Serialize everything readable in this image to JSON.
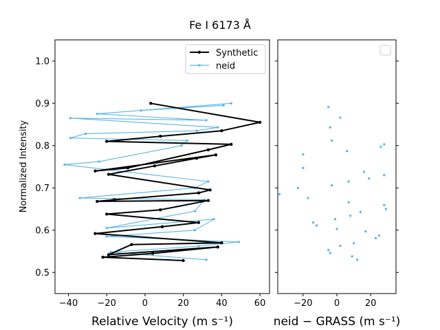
{
  "chart_data": [
    {
      "type": "line",
      "title": "Fe I 6173 Å",
      "xlabel": "Relative Velocity (m s⁻¹)",
      "ylabel": "Normalized Intensity",
      "xlim": [
        -47,
        65
      ],
      "ylim": [
        0.45,
        1.05
      ],
      "x_ticks": [
        -40,
        -20,
        0,
        20,
        40,
        60
      ],
      "y_ticks": [
        0.5,
        0.6,
        0.7,
        0.8,
        0.9,
        1.0
      ],
      "x_tick_labels": [
        "−40",
        "−20",
        "0",
        "20",
        "40",
        "60"
      ],
      "y_tick_labels": [
        "0.5",
        "0.6",
        "0.7",
        "0.8",
        "0.9",
        "1.0"
      ],
      "grid": false,
      "legend_position": "top-right",
      "series": [
        {
          "name": "Synthetic",
          "color": "#000000",
          "x": [
            20,
            -22,
            4,
            38,
            -19,
            -7,
            40,
            -26,
            9,
            28,
            -20,
            8,
            33,
            -25,
            -16,
            28,
            34,
            -19,
            5,
            27,
            37,
            -26,
            -9,
            33,
            45,
            -20,
            8,
            40,
            60,
            3
          ],
          "y": [
            0.528,
            0.536,
            0.545,
            0.56,
            0.542,
            0.566,
            0.57,
            0.592,
            0.608,
            0.618,
            0.638,
            0.648,
            0.67,
            0.668,
            0.672,
            0.688,
            0.695,
            0.732,
            0.752,
            0.77,
            0.778,
            0.74,
            0.747,
            0.79,
            0.803,
            0.81,
            0.822,
            0.835,
            0.855,
            0.9
          ]
        },
        {
          "name": "neid",
          "color": "#5ab4e5",
          "x": [
            32,
            -18,
            28,
            49,
            -20,
            26,
            36,
            -20,
            26,
            31,
            -34,
            26,
            33,
            -42,
            -24,
            19,
            22,
            -39,
            -31,
            27,
            38,
            -39,
            32,
            -25,
            45,
            -2,
            41
          ],
          "y": [
            0.53,
            0.548,
            0.562,
            0.572,
            0.585,
            0.6,
            0.626,
            0.605,
            0.645,
            0.672,
            0.676,
            0.7,
            0.715,
            0.755,
            0.762,
            0.8,
            0.812,
            0.818,
            0.828,
            0.835,
            0.843,
            0.865,
            0.86,
            0.875,
            0.9,
            0.883,
            0.895
          ]
        }
      ]
    },
    {
      "type": "scatter",
      "title": "",
      "xlabel": "neid − GRASS (m s⁻¹)",
      "ylabel": "",
      "xlim": [
        -35,
        35
      ],
      "ylim": [
        0.45,
        1.05
      ],
      "x_ticks": [
        -20,
        0,
        20
      ],
      "x_tick_labels": [
        "−20",
        "0",
        "20"
      ],
      "grid": false,
      "legend_position": "top-right",
      "series": [
        {
          "name": "",
          "color": "#5ab4e5",
          "x": [
            -5,
            2,
            -4,
            -3,
            6,
            26,
            28,
            -20,
            -20,
            16,
            28,
            19,
            7,
            -3,
            -23,
            -17,
            28,
            7,
            29,
            14,
            8,
            -14,
            -1,
            -12,
            17,
            25,
            23,
            0,
            10,
            2,
            -5,
            -4,
            9,
            12,
            -34
          ],
          "y": [
            0.891,
            0.866,
            0.843,
            0.812,
            0.787,
            0.797,
            0.803,
            0.779,
            0.747,
            0.738,
            0.73,
            0.722,
            0.715,
            0.706,
            0.7,
            0.676,
            0.659,
            0.666,
            0.65,
            0.643,
            0.634,
            0.618,
            0.626,
            0.611,
            0.597,
            0.587,
            0.581,
            0.603,
            0.569,
            0.563,
            0.553,
            0.546,
            0.538,
            0.53,
            0.685
          ]
        }
      ]
    }
  ]
}
